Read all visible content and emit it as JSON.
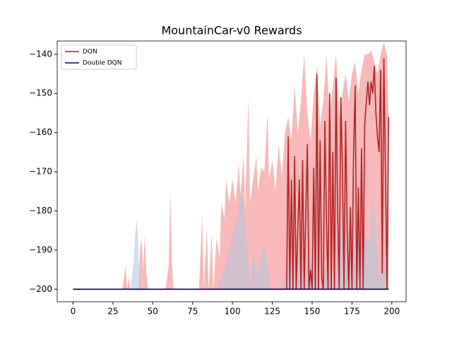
{
  "chart_data": {
    "type": "line",
    "title": "MountainCar-v0 Rewards",
    "xlim": [
      -9.95,
      208.95
    ],
    "ylim": [
      -203.2,
      -136.6
    ],
    "xticks": [
      0,
      25,
      50,
      75,
      100,
      125,
      150,
      175,
      200
    ],
    "yticks": [
      {
        "value": -200,
        "label": "−200"
      },
      {
        "value": -190,
        "label": "−190"
      },
      {
        "value": -180,
        "label": "−180"
      },
      {
        "value": -170,
        "label": "−170"
      },
      {
        "value": -160,
        "label": "−160"
      },
      {
        "value": -150,
        "label": "−150"
      },
      {
        "value": -140,
        "label": "−140"
      }
    ],
    "legend": "upper left",
    "series": [
      {
        "name": "DQN",
        "color": "#b22222",
        "band_color": "#f08080",
        "band_base": -200,
        "x": [
          0,
          134,
          135,
          136,
          137,
          138,
          139,
          140,
          141,
          142,
          143,
          144,
          145,
          146,
          147,
          148,
          149,
          150,
          151,
          152,
          153,
          154,
          155,
          156,
          157,
          158,
          159,
          160,
          161,
          162,
          163,
          164,
          165,
          166,
          167,
          168,
          169,
          170,
          171,
          172,
          173,
          174,
          175,
          176,
          177,
          178,
          179,
          180,
          181,
          182,
          183,
          184,
          185,
          186,
          187,
          188,
          189,
          190,
          191,
          192,
          193,
          194,
          195,
          196,
          197,
          198
        ],
        "values": [
          -200,
          -200,
          -161,
          -200,
          -172,
          -200,
          -166,
          -200,
          -185,
          -172,
          -200,
          -167,
          -200,
          -181,
          -163,
          -200,
          -195,
          -200,
          -169,
          -200,
          -145,
          -200,
          -162,
          -197,
          -200,
          -157,
          -183,
          -200,
          -150,
          -200,
          -165,
          -200,
          -146,
          -180,
          -200,
          -151,
          -169,
          -200,
          -157,
          -185,
          -200,
          -179,
          -200,
          -165,
          -148,
          -200,
          -174,
          -200,
          -164,
          -200,
          -158,
          -152,
          -147,
          -153,
          -147,
          -150,
          -143,
          -155,
          -161,
          -165,
          -144,
          -196,
          -141,
          -170,
          -200,
          -156
        ],
        "band_x": [
          0,
          31,
          33,
          34,
          35,
          36,
          41,
          42,
          43,
          44,
          45,
          46,
          47,
          58,
          60,
          61,
          62,
          63,
          79,
          81,
          82,
          84,
          85,
          87,
          88,
          90,
          92,
          93,
          95,
          96,
          98,
          100,
          102,
          104,
          105,
          107,
          108,
          110,
          111,
          113,
          115,
          116,
          118,
          120,
          122,
          123,
          125,
          127,
          129,
          131,
          133,
          135,
          137,
          139,
          141,
          143,
          145,
          147,
          149,
          151,
          153,
          155,
          157,
          159,
          161,
          163,
          165,
          167,
          169,
          171,
          173,
          175,
          177,
          179,
          181,
          183,
          185,
          187,
          189,
          191,
          193,
          195,
          197,
          198
        ],
        "band_upper": [
          -200,
          -200,
          -194,
          -200,
          -197,
          -200,
          -200,
          -190,
          -187,
          -195,
          -186,
          -196,
          -200,
          -200,
          -194,
          -175,
          -193,
          -200,
          -200,
          -181,
          -200,
          -184,
          -200,
          -186,
          -200,
          -187,
          -192,
          -178,
          -182,
          -172,
          -178,
          -172,
          -178,
          -168,
          -176,
          -166,
          -180,
          -151,
          -178,
          -172,
          -166,
          -175,
          -169,
          -170,
          -155,
          -172,
          -167,
          -175,
          -163,
          -171,
          -160,
          -156,
          -162,
          -148,
          -160,
          -152,
          -140,
          -155,
          -162,
          -150,
          -143,
          -158,
          -152,
          -140,
          -155,
          -148,
          -140,
          -156,
          -150,
          -145,
          -152,
          -145,
          -142,
          -150,
          -144,
          -140,
          -140,
          -139,
          -142,
          -145,
          -140,
          -137,
          -140,
          -156
        ]
      },
      {
        "name": "Double DQN",
        "color": "#000080",
        "band_color": "#b0c4de",
        "band_base": -200,
        "x": [
          0,
          198
        ],
        "values": [
          -200,
          -200
        ],
        "band_x": [
          0,
          36,
          38,
          39,
          40,
          41,
          42,
          90,
          95,
          100,
          103,
          105,
          107,
          109,
          111,
          113,
          116,
          120,
          124,
          130,
          135,
          138,
          142,
          145,
          148,
          150,
          153,
          155,
          160,
          163,
          166,
          170,
          172,
          175,
          178,
          180,
          183,
          186,
          188,
          190,
          192,
          194,
          196,
          198
        ],
        "band_upper": [
          -200,
          -200,
          -193,
          -186,
          -182,
          -189,
          -200,
          -200,
          -195,
          -186,
          -182,
          -175,
          -178,
          -188,
          -200,
          -191,
          -196,
          -188,
          -200,
          -200,
          -193,
          -200,
          -190,
          -200,
          -185,
          -197,
          -188,
          -200,
          -193,
          -200,
          -190,
          -180,
          -195,
          -188,
          -182,
          -192,
          -186,
          -188,
          -176,
          -185,
          -198,
          -188,
          -193,
          -200
        ]
      }
    ]
  }
}
